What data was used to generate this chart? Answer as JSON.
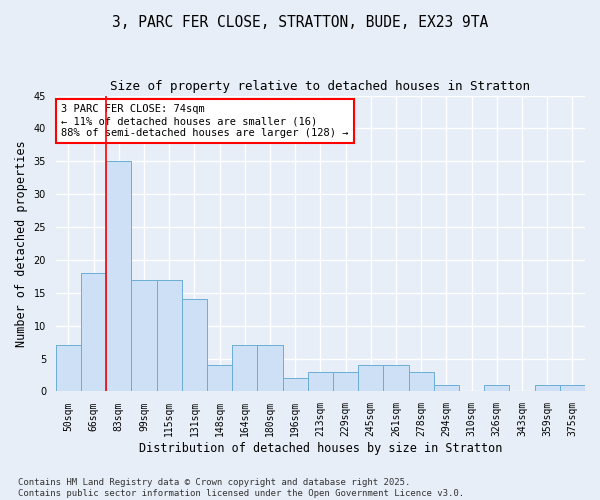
{
  "title": "3, PARC FER CLOSE, STRATTON, BUDE, EX23 9TA",
  "subtitle": "Size of property relative to detached houses in Stratton",
  "xlabel": "Distribution of detached houses by size in Stratton",
  "ylabel": "Number of detached properties",
  "bar_color": "#cde0f5",
  "bar_edge_color": "#6aaed6",
  "categories": [
    "50sqm",
    "66sqm",
    "83sqm",
    "99sqm",
    "115sqm",
    "131sqm",
    "148sqm",
    "164sqm",
    "180sqm",
    "196sqm",
    "213sqm",
    "229sqm",
    "245sqm",
    "261sqm",
    "278sqm",
    "294sqm",
    "310sqm",
    "326sqm",
    "343sqm",
    "359sqm",
    "375sqm"
  ],
  "values": [
    7,
    18,
    35,
    17,
    17,
    14,
    4,
    7,
    7,
    2,
    3,
    3,
    4,
    4,
    3,
    1,
    0,
    1,
    0,
    1,
    1
  ],
  "ylim": [
    0,
    45
  ],
  "yticks": [
    0,
    5,
    10,
    15,
    20,
    25,
    30,
    35,
    40,
    45
  ],
  "red_line_x": 1.5,
  "annotation_text": "3 PARC FER CLOSE: 74sqm\n← 11% of detached houses are smaller (16)\n88% of semi-detached houses are larger (128) →",
  "annotation_box_color": "white",
  "annotation_box_edge_color": "red",
  "footer_line1": "Contains HM Land Registry data © Crown copyright and database right 2025.",
  "footer_line2": "Contains public sector information licensed under the Open Government Licence v3.0.",
  "background_color": "#e8eef8",
  "grid_color": "#ffffff",
  "title_fontsize": 10.5,
  "subtitle_fontsize": 9,
  "tick_fontsize": 7,
  "label_fontsize": 8.5,
  "footer_fontsize": 6.5,
  "annotation_fontsize": 7.5
}
